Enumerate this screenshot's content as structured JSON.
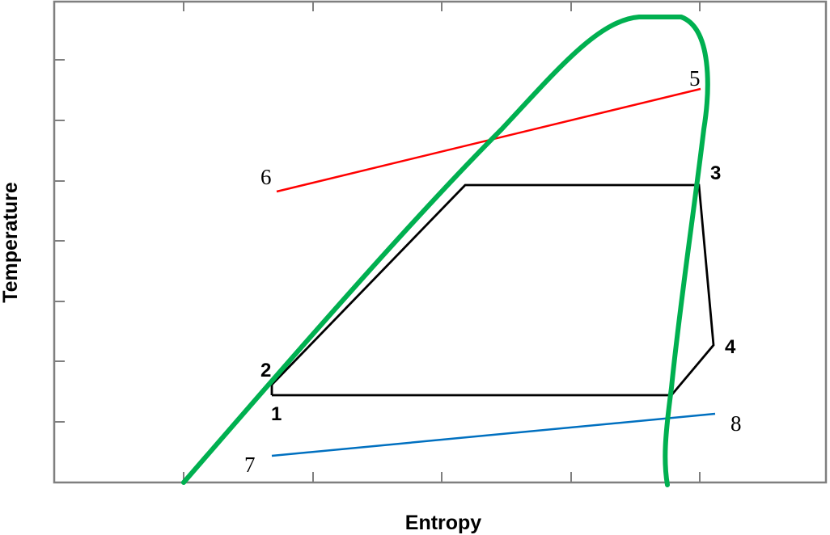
{
  "axes": {
    "x_label": "Entropy",
    "y_label": "Temperature",
    "frame_color": "#7f7f7f"
  },
  "colors": {
    "saturation_dome": "#00b050",
    "cycle": "#000000",
    "hot_stream": "#ff0000",
    "cold_stream": "#0070c0"
  },
  "states": {
    "s1": "1",
    "s2": "2",
    "s3": "3",
    "s4": "4",
    "s5": "5",
    "s6": "6",
    "s7": "7",
    "s8": "8"
  }
}
